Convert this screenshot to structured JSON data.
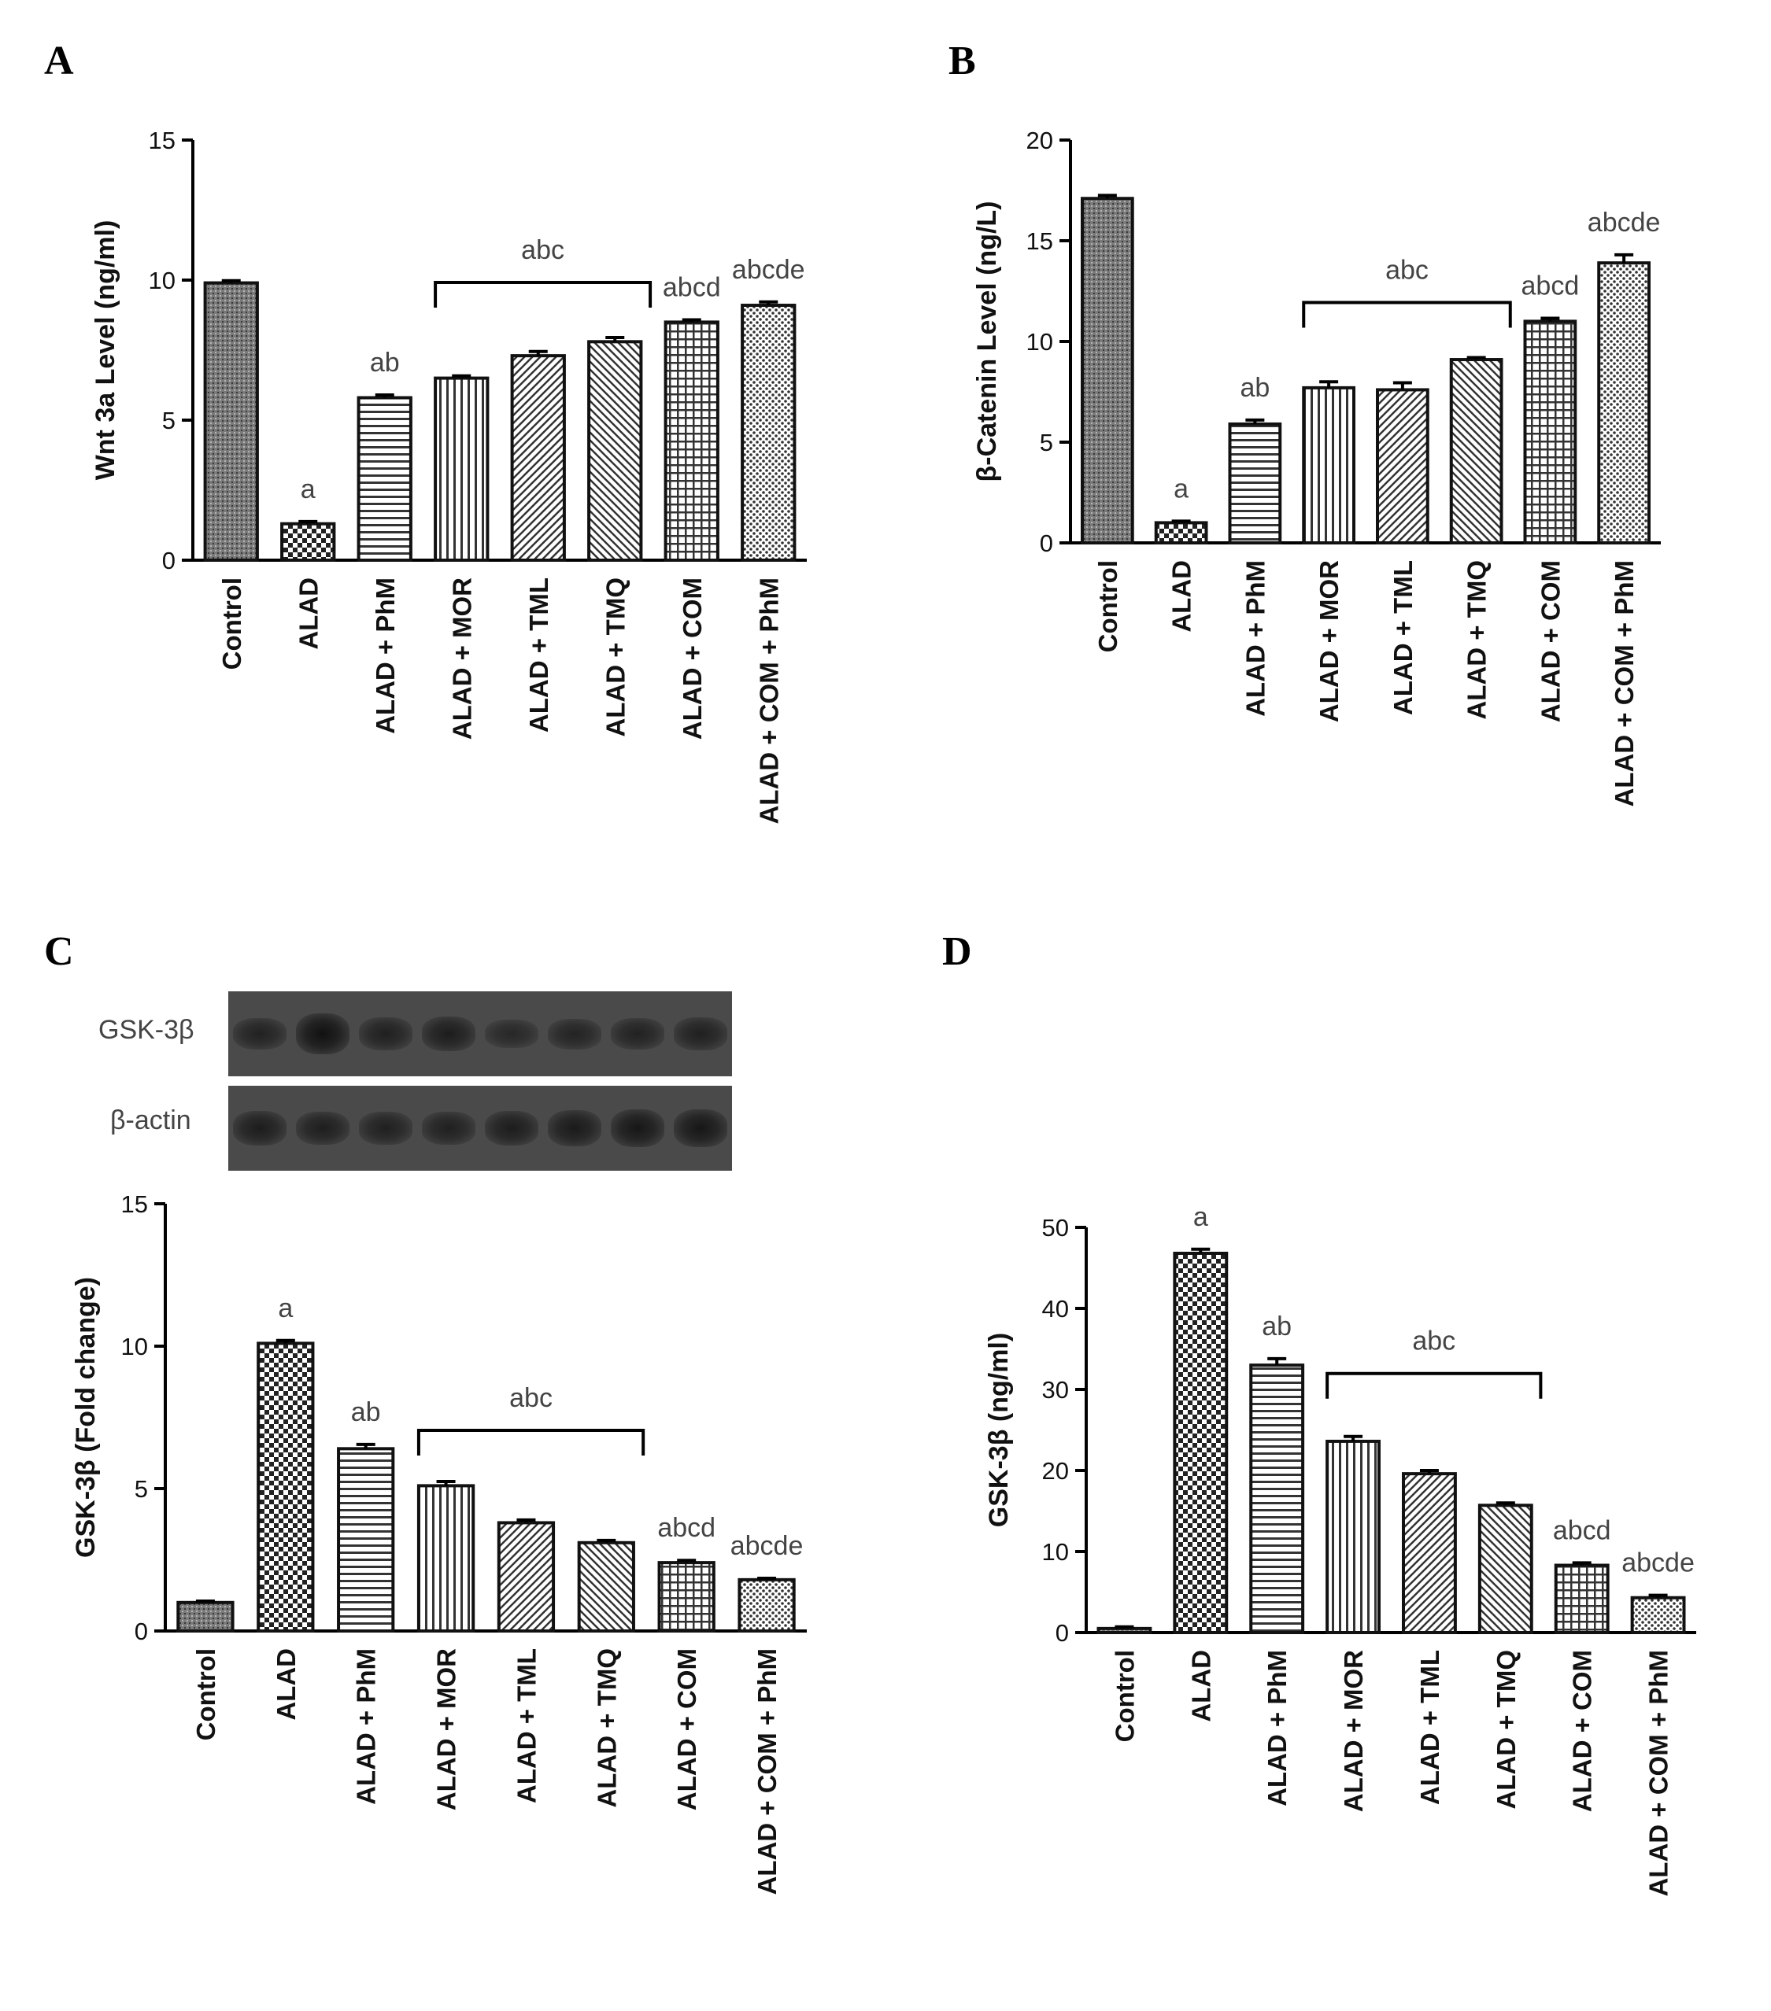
{
  "panels": {
    "a": {
      "letter": "A",
      "chart_data": {
        "type": "bar",
        "categories": [
          "Control",
          "ALAD",
          "ALAD + PhM",
          "ALAD + MOR",
          "ALAD + TML",
          "ALAD + TMQ",
          "ALAD + COM",
          "ALAD + COM + PhM"
        ],
        "values": [
          9.9,
          1.3,
          5.8,
          6.5,
          7.3,
          7.8,
          8.5,
          9.1
        ],
        "errors": [
          0.08,
          0.08,
          0.1,
          0.08,
          0.15,
          0.15,
          0.08,
          0.12
        ],
        "sig_labels": [
          "",
          "a",
          "ab",
          "",
          "",
          "",
          "abcd",
          "abcde"
        ],
        "bracket": {
          "from_index": 3,
          "to_index": 5,
          "label": "abc"
        },
        "ylabel": "Wnt 3a Level (ng/ml)",
        "ylim": [
          0,
          15
        ],
        "yticks": [
          0,
          5,
          10,
          15
        ],
        "patterns": [
          "stipple",
          "checker",
          "hlines",
          "vlines",
          "diag-right",
          "diag-left",
          "grid",
          "dots"
        ],
        "grid": false
      }
    },
    "b": {
      "letter": "B",
      "chart_data": {
        "type": "bar",
        "categories": [
          "Control",
          "ALAD",
          "ALAD + PhM",
          "ALAD + MOR",
          "ALAD + TML",
          "ALAD + TMQ",
          "ALAD + COM",
          "ALAD + COM + PhM"
        ],
        "values": [
          17.1,
          1.0,
          5.9,
          7.7,
          7.6,
          9.1,
          11.0,
          13.9
        ],
        "errors": [
          0.15,
          0.08,
          0.2,
          0.3,
          0.35,
          0.1,
          0.15,
          0.4
        ],
        "sig_labels": [
          "",
          "a",
          "ab",
          "",
          "",
          "",
          "abcd",
          "abcde"
        ],
        "bracket": {
          "from_index": 3,
          "to_index": 5,
          "label": "abc"
        },
        "ylabel": "β-Catenin Level (ng/L)",
        "ylim": [
          0,
          20
        ],
        "yticks": [
          0,
          5,
          10,
          15,
          20
        ],
        "patterns": [
          "stipple",
          "checker",
          "hlines",
          "vlines",
          "diag-right",
          "diag-left",
          "grid",
          "dots"
        ],
        "grid": false
      }
    },
    "c": {
      "letter": "C",
      "blot": {
        "rows": [
          {
            "label": "GSK-3β",
            "intensities": [
              0.55,
              1.0,
              0.6,
              0.7,
              0.4,
              0.5,
              0.55,
              0.6
            ]
          },
          {
            "label": "β-actin",
            "intensities": [
              0.7,
              0.65,
              0.6,
              0.6,
              0.7,
              0.75,
              0.85,
              0.85
            ]
          }
        ]
      },
      "chart_data": {
        "type": "bar",
        "categories": [
          "Control",
          "ALAD",
          "ALAD + PhM",
          "ALAD + MOR",
          "ALAD + TML",
          "ALAD + TMQ",
          "ALAD + COM",
          "ALAD + COM + PhM"
        ],
        "values": [
          1.0,
          10.1,
          6.4,
          5.1,
          3.8,
          3.1,
          2.4,
          1.8
        ],
        "errors": [
          0.05,
          0.1,
          0.15,
          0.15,
          0.1,
          0.08,
          0.08,
          0.05
        ],
        "sig_labels": [
          "",
          "a",
          "ab",
          "",
          "",
          "",
          "abcd",
          "abcde"
        ],
        "bracket": {
          "from_index": 3,
          "to_index": 5,
          "label": "abc"
        },
        "ylabel": "GSK-3β (Fold change)",
        "ylim": [
          0,
          15
        ],
        "yticks": [
          0,
          5,
          10,
          15
        ],
        "patterns": [
          "stipple",
          "checker",
          "hlines",
          "vlines",
          "diag-right",
          "diag-left",
          "grid",
          "dots"
        ],
        "grid": false
      }
    },
    "d": {
      "letter": "D",
      "chart_data": {
        "type": "bar",
        "categories": [
          "Control",
          "ALAD",
          "ALAD + PhM",
          "ALAD + MOR",
          "ALAD + TML",
          "ALAD + TMQ",
          "ALAD + COM",
          "ALAD + COM +  PhM"
        ],
        "values": [
          0.5,
          46.8,
          33.0,
          23.6,
          19.6,
          15.7,
          8.3,
          4.3
        ],
        "errors": [
          0.2,
          0.5,
          0.8,
          0.6,
          0.4,
          0.3,
          0.3,
          0.3
        ],
        "sig_labels": [
          "",
          "a",
          "ab",
          "",
          "",
          "",
          "abcd",
          "abcde"
        ],
        "bracket": {
          "from_index": 3,
          "to_index": 5,
          "label": "abc"
        },
        "ylabel": "GSK-3β (ng/ml)",
        "ylim": [
          0,
          50
        ],
        "yticks": [
          0,
          10,
          20,
          30,
          40,
          50
        ],
        "patterns": [
          "stipple",
          "checker",
          "hlines",
          "vlines",
          "diag-right",
          "diag-left",
          "grid",
          "dots"
        ],
        "grid": false
      }
    }
  }
}
